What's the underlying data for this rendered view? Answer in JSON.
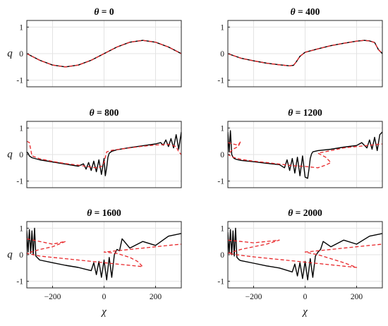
{
  "chart_data": [
    {
      "type": "line",
      "title": "θ = 0",
      "title_var": "θ",
      "title_value": "0",
      "xlabel": "",
      "ylabel": "q",
      "xlim": [
        -300,
        300
      ],
      "ylim": [
        -1.25,
        1.25
      ],
      "xticks": [],
      "yticks": [
        -1,
        0,
        1
      ],
      "grid": true,
      "series": [
        {
          "color": "#000000",
          "dash": "solid",
          "x": [
            -300,
            -250,
            -200,
            -150,
            -100,
            -50,
            0,
            50,
            100,
            150,
            200,
            250,
            300
          ],
          "y": [
            0.0,
            -0.25,
            -0.43,
            -0.5,
            -0.43,
            -0.25,
            0.0,
            0.25,
            0.43,
            0.5,
            0.43,
            0.25,
            0.0
          ]
        },
        {
          "color": "#e8272a",
          "dash": "dashed",
          "x": [
            -300,
            -250,
            -200,
            -150,
            -100,
            -50,
            0,
            50,
            100,
            150,
            200,
            250,
            300
          ],
          "y": [
            0.0,
            -0.25,
            -0.43,
            -0.5,
            -0.43,
            -0.25,
            0.0,
            0.25,
            0.43,
            0.5,
            0.43,
            0.25,
            0.0
          ]
        }
      ]
    },
    {
      "type": "line",
      "title": "θ = 400",
      "title_var": "θ",
      "title_value": "400",
      "xlabel": "",
      "ylabel": "",
      "xlim": [
        -300,
        300
      ],
      "ylim": [
        -1.25,
        1.25
      ],
      "xticks": [],
      "yticks": [
        -1,
        0,
        1
      ],
      "grid": true,
      "series": [
        {
          "color": "#000000",
          "dash": "solid",
          "x": [
            -300,
            -250,
            -200,
            -150,
            -100,
            -60,
            -45,
            -35,
            -20,
            0,
            50,
            100,
            150,
            200,
            230,
            250,
            270,
            285,
            300
          ],
          "y": [
            0.0,
            -0.17,
            -0.27,
            -0.36,
            -0.42,
            -0.46,
            -0.44,
            -0.32,
            -0.1,
            0.05,
            0.18,
            0.3,
            0.39,
            0.47,
            0.5,
            0.48,
            0.42,
            0.15,
            0.0
          ]
        },
        {
          "color": "#e8272a",
          "dash": "dashed",
          "x": [
            -300,
            -250,
            -200,
            -150,
            -100,
            -60,
            -45,
            -35,
            -20,
            0,
            50,
            100,
            150,
            200,
            230,
            250,
            270,
            285,
            300
          ],
          "y": [
            0.0,
            -0.17,
            -0.27,
            -0.36,
            -0.42,
            -0.46,
            -0.44,
            -0.32,
            -0.1,
            0.05,
            0.18,
            0.3,
            0.39,
            0.47,
            0.5,
            0.48,
            0.42,
            0.15,
            0.0
          ]
        }
      ]
    },
    {
      "type": "line",
      "title": "θ = 800",
      "title_var": "θ",
      "title_value": "800",
      "xlabel": "",
      "ylabel": "q",
      "xlim": [
        -300,
        300
      ],
      "ylim": [
        -1.25,
        1.25
      ],
      "xticks": [],
      "yticks": [
        -1,
        0,
        1
      ],
      "grid": true,
      "series": [
        {
          "color": "#000000",
          "dash": "solid",
          "x": [
            -300,
            -295,
            -290,
            -280,
            -250,
            -200,
            -150,
            -100,
            -80,
            -70,
            -60,
            -50,
            -40,
            -30,
            -20,
            -10,
            0,
            5,
            10,
            15,
            20,
            30,
            50,
            100,
            150,
            200,
            220,
            230,
            240,
            250,
            260,
            270,
            280,
            290,
            300
          ],
          "y": [
            0.1,
            0.05,
            -0.05,
            -0.12,
            -0.2,
            -0.28,
            -0.36,
            -0.44,
            -0.35,
            -0.55,
            -0.3,
            -0.6,
            -0.25,
            -0.65,
            -0.2,
            -0.75,
            -0.15,
            -0.8,
            -0.5,
            -0.1,
            0.05,
            0.12,
            0.18,
            0.26,
            0.33,
            0.4,
            0.45,
            0.35,
            0.55,
            0.3,
            0.6,
            0.25,
            0.75,
            0.2,
            0.85
          ]
        },
        {
          "color": "#e8272a",
          "dash": "dashed",
          "x": [
            -300,
            -290,
            -285,
            -280,
            -250,
            -200,
            -150,
            -100,
            -60,
            -30,
            -10,
            0,
            10,
            30,
            60,
            100,
            150,
            200,
            250,
            280,
            290,
            300
          ],
          "y": [
            0.5,
            0.45,
            0.2,
            -0.05,
            -0.16,
            -0.26,
            -0.34,
            -0.4,
            -0.46,
            -0.5,
            -0.45,
            -0.3,
            0.1,
            0.16,
            0.2,
            0.25,
            0.31,
            0.36,
            0.38,
            0.3,
            0.1,
            0.0
          ]
        }
      ]
    },
    {
      "type": "line",
      "title": "θ = 1200",
      "title_var": "θ",
      "title_value": "1200",
      "xlabel": "",
      "ylabel": "",
      "xlim": [
        -300,
        300
      ],
      "ylim": [
        -1.25,
        1.25
      ],
      "xticks": [],
      "yticks": [
        -1,
        0,
        1
      ],
      "grid": true,
      "series": [
        {
          "color": "#000000",
          "dash": "solid",
          "x": [
            -300,
            -295,
            -290,
            -285,
            -280,
            -275,
            -270,
            -260,
            -250,
            -200,
            -150,
            -100,
            -80,
            -70,
            -60,
            -50,
            -40,
            -30,
            -20,
            -10,
            0,
            10,
            15,
            20,
            25,
            30,
            50,
            100,
            150,
            200,
            220,
            240,
            250,
            260,
            270,
            280,
            290,
            300
          ],
          "y": [
            0.85,
            0.1,
            0.9,
            0.0,
            -0.1,
            -0.15,
            -0.17,
            -0.2,
            -0.22,
            -0.27,
            -0.33,
            -0.38,
            -0.5,
            -0.2,
            -0.6,
            -0.15,
            -0.7,
            -0.1,
            -0.8,
            -0.05,
            -0.85,
            -0.9,
            -0.55,
            -0.15,
            0.02,
            0.1,
            0.15,
            0.2,
            0.28,
            0.34,
            0.45,
            0.25,
            0.55,
            0.2,
            0.65,
            0.15,
            0.75,
            0.85
          ]
        },
        {
          "color": "#e8272a",
          "dash": "dashed",
          "x": [
            -300,
            -280,
            -260,
            -250,
            -260,
            -280,
            -300,
            -280,
            -250,
            -200,
            -150,
            -100,
            -50,
            0,
            50,
            80,
            100,
            80,
            50,
            100,
            150,
            200,
            250,
            300
          ],
          "y": [
            0.45,
            0.4,
            0.35,
            0.5,
            0.3,
            0.2,
            0.0,
            -0.1,
            -0.18,
            -0.25,
            -0.3,
            -0.36,
            -0.42,
            -0.45,
            -0.5,
            -0.4,
            -0.3,
            -0.1,
            0.05,
            0.15,
            0.25,
            0.3,
            0.35,
            0.4
          ]
        }
      ]
    },
    {
      "type": "line",
      "title": "θ = 1600",
      "title_var": "θ",
      "title_value": "1600",
      "xlabel": "χ",
      "ylabel": "q",
      "xlim": [
        -300,
        300
      ],
      "ylim": [
        -1.25,
        1.25
      ],
      "xticks": [
        -200,
        0,
        200
      ],
      "yticks": [
        -1,
        0,
        1
      ],
      "grid": true,
      "series": [
        {
          "color": "#000000",
          "dash": "solid",
          "x": [
            -300,
            -295,
            -290,
            -285,
            -280,
            -275,
            -270,
            -265,
            -260,
            -255,
            -250,
            -200,
            -150,
            -100,
            -50,
            -40,
            -30,
            -20,
            -10,
            0,
            10,
            20,
            30,
            40,
            50,
            60,
            70,
            100,
            150,
            200,
            250,
            300
          ],
          "y": [
            0.9,
            0.1,
            0.95,
            0.05,
            0.9,
            0.0,
            1.0,
            -0.05,
            -0.1,
            -0.15,
            -0.2,
            -0.3,
            -0.4,
            -0.48,
            -0.6,
            -0.3,
            -0.75,
            -0.25,
            -0.85,
            -0.2,
            -0.95,
            -0.1,
            -0.85,
            0.0,
            0.2,
            0.15,
            0.6,
            0.25,
            0.5,
            0.35,
            0.7,
            0.8
          ]
        },
        {
          "color": "#e8272a",
          "dash": "dashed",
          "x": [
            -300,
            -250,
            -200,
            -150,
            -200,
            -250,
            -300,
            -250,
            -200,
            -150,
            -100,
            -50,
            0,
            50,
            100,
            150,
            130,
            100,
            50,
            0,
            50,
            100,
            150,
            200,
            250,
            300
          ],
          "y": [
            0.6,
            0.5,
            0.4,
            0.5,
            0.3,
            0.2,
            0.05,
            -0.05,
            -0.1,
            -0.15,
            -0.2,
            -0.25,
            -0.3,
            -0.35,
            -0.4,
            -0.45,
            -0.25,
            -0.1,
            0.05,
            0.1,
            0.15,
            0.2,
            0.25,
            0.3,
            0.35,
            0.4
          ]
        }
      ]
    },
    {
      "type": "line",
      "title": "θ = 2000",
      "title_var": "θ",
      "title_value": "2000",
      "xlabel": "χ",
      "ylabel": "",
      "xlim": [
        -300,
        300
      ],
      "ylim": [
        -1.25,
        1.25
      ],
      "xticks": [
        -200,
        0,
        200
      ],
      "yticks": [
        -1,
        0,
        1
      ],
      "grid": true,
      "series": [
        {
          "color": "#000000",
          "dash": "solid",
          "x": [
            -300,
            -295,
            -290,
            -285,
            -280,
            -275,
            -270,
            -265,
            -260,
            -255,
            -250,
            -200,
            -150,
            -100,
            -50,
            -40,
            -30,
            -20,
            -10,
            0,
            10,
            20,
            30,
            40,
            50,
            60,
            70,
            100,
            150,
            200,
            250,
            300
          ],
          "y": [
            0.85,
            0.05,
            0.95,
            0.0,
            0.9,
            -0.05,
            1.0,
            -0.1,
            -0.15,
            -0.2,
            -0.22,
            -0.32,
            -0.42,
            -0.5,
            -0.65,
            -0.35,
            -0.8,
            -0.3,
            -0.9,
            -0.25,
            -0.95,
            -0.15,
            -0.85,
            -0.05,
            0.1,
            0.2,
            0.5,
            0.3,
            0.55,
            0.4,
            0.7,
            0.8
          ]
        },
        {
          "color": "#e8272a",
          "dash": "dashed",
          "x": [
            -300,
            -250,
            -200,
            -150,
            -100,
            -150,
            -200,
            -250,
            -300,
            -250,
            -200,
            -150,
            -100,
            -50,
            0,
            50,
            100,
            150,
            200,
            150,
            100,
            50,
            0,
            50,
            100,
            150,
            200,
            250,
            300
          ],
          "y": [
            0.55,
            0.5,
            0.45,
            0.5,
            0.55,
            0.4,
            0.3,
            0.2,
            0.05,
            -0.02,
            -0.08,
            -0.13,
            -0.18,
            -0.23,
            -0.28,
            -0.33,
            -0.38,
            -0.43,
            -0.48,
            -0.3,
            -0.15,
            0.0,
            0.1,
            0.15,
            0.2,
            0.25,
            0.3,
            0.35,
            0.4
          ]
        }
      ]
    }
  ]
}
